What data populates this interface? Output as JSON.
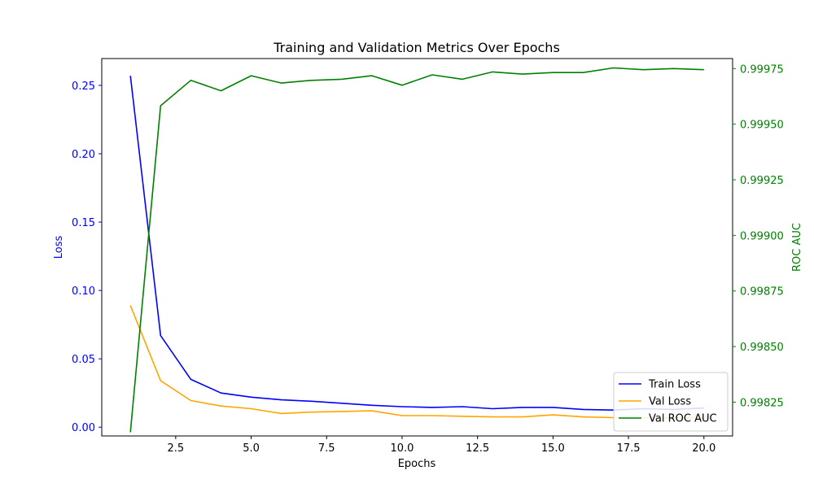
{
  "chart_data": {
    "type": "line",
    "title": "Training and Validation Metrics Over Epochs",
    "xlabel": "Epochs",
    "ylabel_left": "Loss",
    "ylabel_right": "ROC AUC",
    "xlim": [
      0.05,
      20.95
    ],
    "ylim_left": [
      -0.0064,
      0.2696
    ],
    "ylim_right": [
      0.998098,
      0.999795
    ],
    "x_ticks": [
      2.5,
      5.0,
      7.5,
      10.0,
      12.5,
      15.0,
      17.5,
      20.0
    ],
    "x_tick_labels": [
      "2.5",
      "5.0",
      "7.5",
      "10.0",
      "12.5",
      "15.0",
      "17.5",
      "20.0"
    ],
    "y_left_ticks": [
      0.0,
      0.05,
      0.1,
      0.15,
      0.2,
      0.25
    ],
    "y_left_tick_labels": [
      "0.00",
      "0.05",
      "0.10",
      "0.15",
      "0.20",
      "0.25"
    ],
    "y_right_ticks": [
      0.99825,
      0.9985,
      0.99875,
      0.999,
      0.99925,
      0.9995,
      0.99975
    ],
    "y_right_tick_labels": [
      "0.99825",
      "0.99850",
      "0.99875",
      "0.99900",
      "0.99925",
      "0.99950",
      "0.99975"
    ],
    "left_axis_color": "#0000ff",
    "right_axis_color": "#008000",
    "legend_position": "lower-right",
    "x": [
      1,
      2,
      3,
      4,
      5,
      6,
      7,
      8,
      9,
      10,
      11,
      12,
      13,
      14,
      15,
      16,
      17,
      18,
      19,
      20
    ],
    "series": [
      {
        "name": "Train Loss",
        "axis": "left",
        "color": "#0000ff",
        "values": [
          0.257,
          0.067,
          0.035,
          0.025,
          0.022,
          0.02,
          0.019,
          0.0175,
          0.016,
          0.015,
          0.0145,
          0.015,
          0.0135,
          0.0145,
          0.0145,
          0.013,
          0.0125,
          0.0135,
          0.013,
          0.014
        ]
      },
      {
        "name": "Val Loss",
        "axis": "left",
        "color": "#ffa500",
        "values": [
          0.089,
          0.034,
          0.0195,
          0.0155,
          0.0135,
          0.01,
          0.011,
          0.0115,
          0.012,
          0.0085,
          0.0085,
          0.008,
          0.0075,
          0.0075,
          0.009,
          0.0075,
          0.007,
          0.007,
          0.007,
          0.007
        ]
      },
      {
        "name": "Val ROC AUC",
        "axis": "right",
        "color": "#008000",
        "values": [
          0.998115,
          0.999583,
          0.999697,
          0.99965,
          0.999718,
          0.999685,
          0.999697,
          0.999702,
          0.999718,
          0.999675,
          0.999722,
          0.999702,
          0.999735,
          0.999725,
          0.999732,
          0.999732,
          0.999753,
          0.999745,
          0.99975,
          0.999745
        ]
      }
    ]
  }
}
